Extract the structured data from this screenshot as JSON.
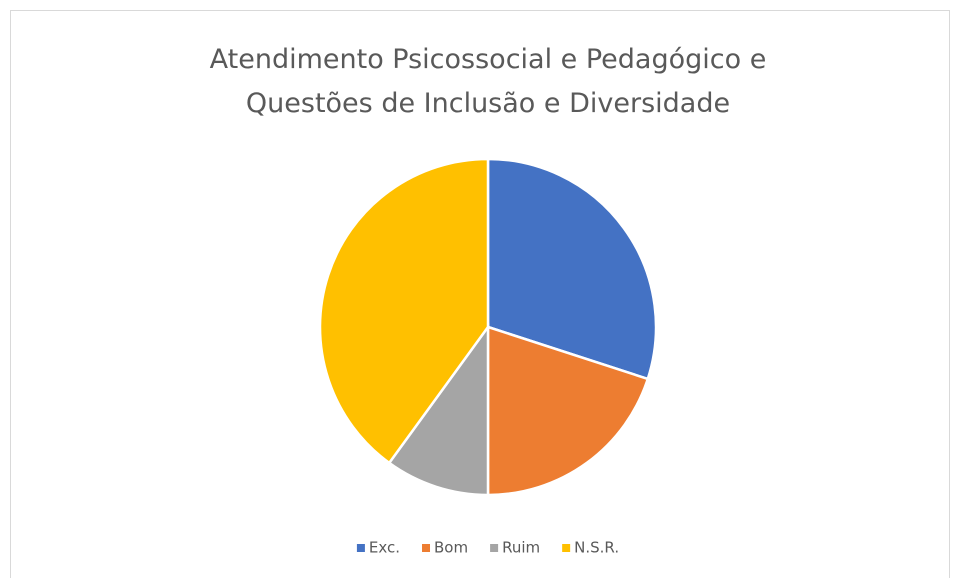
{
  "chart_data": {
    "type": "pie",
    "title": "Atendimento Psicossocial e Pedagógico e Questões de Inclusão e Diversidade",
    "categories": [
      "Exc.",
      "Bom",
      "Ruim",
      "N.S.R."
    ],
    "values": [
      30,
      20,
      10,
      40
    ],
    "colors": [
      "#4472c4",
      "#ed7d31",
      "#a5a5a5",
      "#ffc000"
    ],
    "legend": "bottom"
  }
}
